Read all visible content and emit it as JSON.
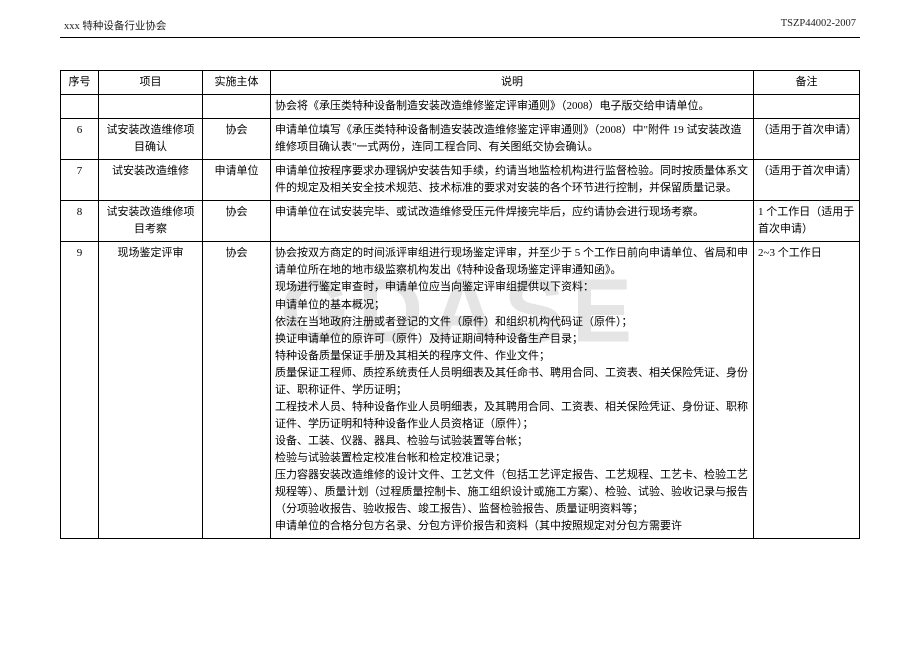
{
  "header": {
    "left": "xxx 特种设备行业协会",
    "right": "TSZP44002-2007"
  },
  "watermark": "GDASE",
  "columns": {
    "seq": "序号",
    "proj": "项目",
    "subj": "实施主体",
    "desc": "说明",
    "note": "备注"
  },
  "rows": [
    {
      "seq": "",
      "proj": "",
      "subj": "",
      "desc": "协会将《承压类特种设备制造安装改造维修鉴定评审通则》（2008）电子版交给申请单位。",
      "note": "",
      "continuation": true
    },
    {
      "seq": "6",
      "proj": "试安装改造维修项目确认",
      "subj": "协会",
      "desc": "申请单位填写《承压类特种设备制造安装改造维修鉴定评审通则》（2008）中\"附件 19 试安装改造维修项目确认表\"一式两份，连同工程合同、有关图纸交协会确认。",
      "note": "（适用于首次申请）"
    },
    {
      "seq": "7",
      "proj": "试安装改造维修",
      "subj": "申请单位",
      "desc": "申请单位按程序要求办理锅炉安装告知手续，约请当地监检机构进行监督检验。同时按质量体系文件的规定及相关安全技术规范、技术标准的要求对安装的各个环节进行控制，并保留质量记录。",
      "note": "（适用于首次申请）"
    },
    {
      "seq": "8",
      "proj": "试安装改造维修项目考察",
      "subj": "协会",
      "desc": "申请单位在试安装完毕、或试改造维修受压元件焊接完毕后，应约请协会进行现场考察。",
      "note": "1 个工作日（适用于首次申请）"
    },
    {
      "seq": "9",
      "proj": "现场鉴定评审",
      "subj": "协会",
      "desc": "协会按双方商定的时间派评审组进行现场鉴定评审，并至少于 5 个工作日前向申请单位、省局和申请单位所在地的地市级监察机构发出《特种设备现场鉴定评审通知函》。\n现场进行鉴定审查时，申请单位应当向鉴定评审组提供以下资料：\n申请单位的基本概况；\n依法在当地政府注册或者登记的文件（原件）和组织机构代码证（原件）；\n换证申请单位的原许可（原件）及持证期间特种设备生产目录；\n特种设备质量保证手册及其相关的程序文件、作业文件；\n质量保证工程师、质控系统责任人员明细表及其任命书、聘用合同、工资表、相关保险凭证、身份证、职称证件、学历证明；\n工程技术人员、特种设备作业人员明细表，及其聘用合同、工资表、相关保险凭证、身份证、职称证件、学历证明和特种设备作业人员资格证（原件）；\n设备、工装、仪器、器具、检验与试验装置等台帐；\n检验与试验装置检定校准台帐和检定校准记录；\n压力容器安装改造维修的设计文件、工艺文件（包括工艺评定报告、工艺规程、工艺卡、检验工艺规程等）、质量计划（过程质量控制卡、施工组织设计或施工方案）、检验、试验、验收记录与报告（分项验收报告、验收报告、竣工报告）、监督检验报告、质量证明资料等；\n申请单位的合格分包方名录、分包方评价报告和资料（其中按照规定对分包方需要许",
      "note": "2~3 个工作日"
    }
  ]
}
